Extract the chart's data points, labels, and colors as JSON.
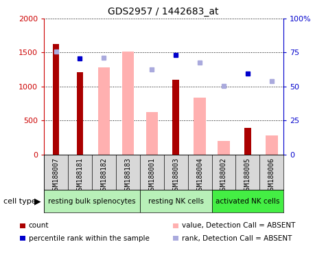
{
  "title": "GDS2957 / 1442683_at",
  "samples": [
    "GSM188007",
    "GSM188181",
    "GSM188182",
    "GSM188183",
    "GSM188001",
    "GSM188003",
    "GSM188004",
    "GSM188002",
    "GSM188005",
    "GSM188006"
  ],
  "cell_types": [
    {
      "label": "resting bulk splenocytes",
      "start": 0,
      "end": 4,
      "color": "#b8f0b8"
    },
    {
      "label": "resting NK cells",
      "start": 4,
      "end": 7,
      "color": "#b8f0b8"
    },
    {
      "label": "activated NK cells",
      "start": 7,
      "end": 10,
      "color": "#44ee44"
    }
  ],
  "count_values": [
    1620,
    1210,
    null,
    null,
    null,
    1100,
    null,
    null,
    390,
    null
  ],
  "count_color": "#aa0000",
  "absent_value_bars": [
    null,
    null,
    1280,
    1510,
    625,
    null,
    840,
    200,
    null,
    275
  ],
  "absent_value_color": "#ffb0b0",
  "percentile_rank_dots": [
    null,
    1410,
    null,
    null,
    null,
    1460,
    null,
    null,
    1190,
    null
  ],
  "percentile_rank_color": "#0000cc",
  "absent_rank_dots": [
    1510,
    null,
    1420,
    null,
    1250,
    null,
    1350,
    1010,
    null,
    1080
  ],
  "absent_rank_color": "#aaaadd",
  "ylim_left": [
    0,
    2000
  ],
  "ylim_right": [
    0,
    100
  ],
  "yticks_left": [
    0,
    500,
    1000,
    1500,
    2000
  ],
  "yticks_left_labels": [
    "0",
    "500",
    "1000",
    "1500",
    "2000"
  ],
  "yticks_right": [
    0,
    25,
    50,
    75,
    100
  ],
  "yticks_right_labels": [
    "0",
    "25",
    "50",
    "75",
    "100%"
  ],
  "left_axis_color": "#cc0000",
  "right_axis_color": "#0000cc",
  "bar_width": 0.5,
  "legend_items": [
    {
      "label": "count",
      "color": "#aa0000"
    },
    {
      "label": "percentile rank within the sample",
      "color": "#0000cc"
    },
    {
      "label": "value, Detection Call = ABSENT",
      "color": "#ffb0b0"
    },
    {
      "label": "rank, Detection Call = ABSENT",
      "color": "#aaaadd"
    }
  ]
}
